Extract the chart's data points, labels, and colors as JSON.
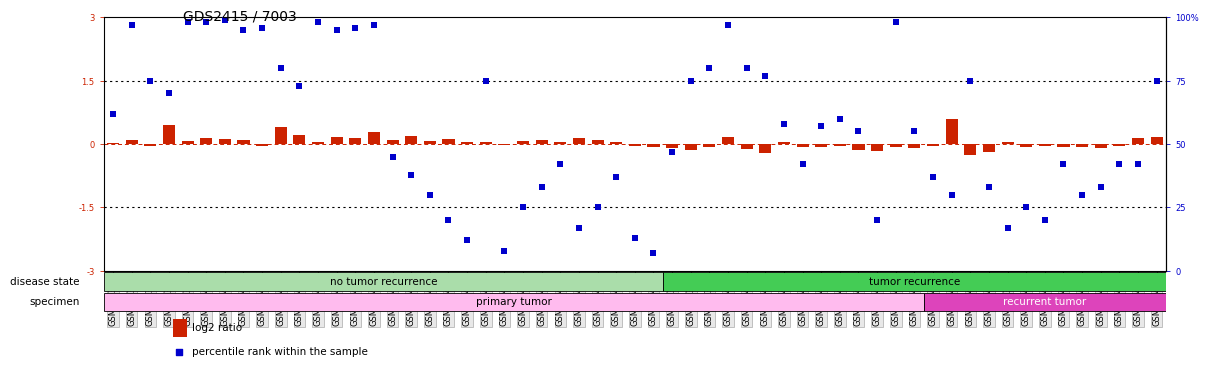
{
  "title": "GDS2415 / 7003",
  "samples": [
    "GSM110395",
    "GSM110396",
    "GSM110397",
    "GSM110398",
    "GSM110399",
    "GSM110400",
    "GSM110401",
    "GSM110406",
    "GSM110407",
    "GSM110409",
    "GSM110410",
    "GSM110413",
    "GSM110414",
    "GSM110415",
    "GSM110416",
    "GSM110418",
    "GSM110419",
    "GSM110420",
    "GSM110421",
    "GSM110424",
    "GSM110425",
    "GSM110427",
    "GSM110428",
    "GSM110430",
    "GSM110431",
    "GSM110432",
    "GSM110434",
    "GSM110435",
    "GSM110437",
    "GSM110438",
    "GSM110388",
    "GSM110392",
    "GSM110394",
    "GSM110402",
    "GSM110411",
    "GSM110412",
    "GSM110417",
    "GSM110422",
    "GSM110426",
    "GSM110429",
    "GSM110433",
    "GSM110436",
    "GSM110440",
    "GSM110441",
    "GSM110444",
    "GSM110445",
    "GSM110449",
    "GSM110451",
    "GSM110391",
    "GSM110439",
    "GSM110442",
    "GSM110443",
    "GSM110447",
    "GSM110448",
    "GSM110450",
    "GSM110452",
    "GSM110453"
  ],
  "log2_ratio": [
    0.02,
    0.1,
    -0.05,
    0.45,
    0.08,
    0.15,
    0.12,
    0.1,
    -0.04,
    0.4,
    0.22,
    0.06,
    0.18,
    0.14,
    0.28,
    0.1,
    0.2,
    0.08,
    0.12,
    0.06,
    0.04,
    -0.02,
    0.08,
    0.1,
    0.06,
    0.14,
    0.1,
    0.06,
    -0.04,
    -0.06,
    -0.1,
    -0.14,
    -0.06,
    0.18,
    -0.12,
    -0.2,
    0.04,
    -0.08,
    -0.06,
    -0.04,
    -0.14,
    -0.16,
    -0.06,
    -0.1,
    -0.04,
    0.6,
    -0.25,
    -0.18,
    0.04,
    -0.06,
    -0.04,
    -0.08,
    -0.06,
    -0.1,
    -0.04,
    0.14,
    0.18
  ],
  "percentile_raw": [
    62,
    97,
    75,
    70,
    98,
    98,
    99,
    95,
    96,
    80,
    73,
    98,
    95,
    96,
    97,
    45,
    38,
    30,
    20,
    12,
    75,
    8,
    25,
    33,
    42,
    17,
    25,
    37,
    13,
    7,
    47,
    75,
    80,
    97,
    80,
    77,
    58,
    42,
    57,
    60,
    55,
    20,
    98,
    55,
    37,
    30,
    75,
    33,
    17,
    25,
    20,
    42,
    30,
    33,
    42,
    42,
    75
  ],
  "no_tumor_count": 30,
  "tumor_count": 27,
  "primary_tumor_count": 44,
  "recurrent_tumor_count": 13,
  "bar_color": "#cc2200",
  "dot_color": "#0000cc",
  "no_tumor_color": "#aaddaa",
  "tumor_color": "#44cc55",
  "primary_color": "#ffbbee",
  "recurrent_color": "#dd44bb",
  "bg_color": "#ffffff",
  "ylim_left": [
    -3,
    3
  ],
  "yticks_left": [
    -3,
    -1.5,
    0,
    1.5,
    3
  ],
  "ylim_right": [
    0,
    100
  ],
  "yticks_right": [
    0,
    25,
    50,
    75,
    100
  ],
  "title_fontsize": 10,
  "tick_fontsize": 6,
  "label_fontsize": 7.5
}
